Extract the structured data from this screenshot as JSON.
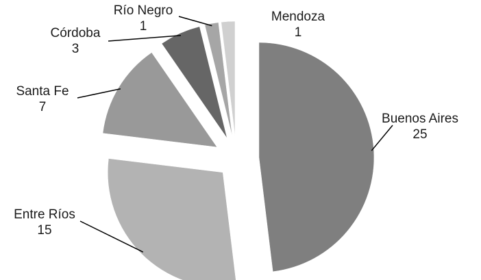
{
  "chart_data": {
    "type": "pie",
    "title": "",
    "slices": [
      {
        "label": "Buenos Aires",
        "value": 25,
        "color": "#7f7f7f"
      },
      {
        "label": "Entre Ríos",
        "value": 15,
        "color": "#b3b3b3"
      },
      {
        "label": "Santa Fe",
        "value": 7,
        "color": "#999999"
      },
      {
        "label": "Córdoba",
        "value": 3,
        "color": "#666666"
      },
      {
        "label": "Río Negro",
        "value": 1,
        "color": "#a6a6a6"
      },
      {
        "label": "Mendoza",
        "value": 1,
        "color": "#d0d0d0"
      }
    ],
    "start_angle_deg": 0,
    "direction": "clockwise",
    "exploded": true,
    "legend": "none",
    "data_labels": "category and value, outside with leader lines"
  }
}
